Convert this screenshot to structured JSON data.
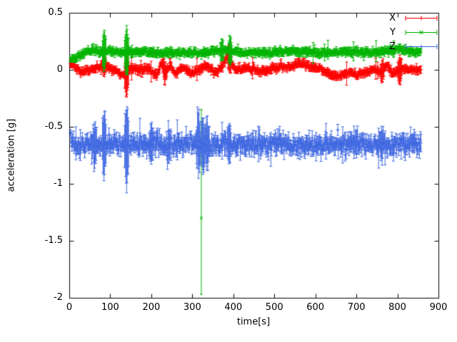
{
  "chart_data": {
    "type": "scatter",
    "style": "errorbars",
    "title": "",
    "xlabel": "time[s]",
    "ylabel": "acceleration [g]",
    "xlim": [
      0,
      900
    ],
    "ylim": [
      -2,
      0.5
    ],
    "xticks": [
      0,
      100,
      200,
      300,
      400,
      500,
      600,
      700,
      800,
      900
    ],
    "yticks": [
      0.5,
      0,
      -0.5,
      -1,
      -1.5,
      -2
    ],
    "grid": false,
    "legend_position": "top-right-inside",
    "x_start": 3,
    "x_end": 858,
    "x_step": 1.2,
    "seed": 42,
    "series": [
      {
        "name": "X",
        "color": "#ff0000",
        "marker": "plus",
        "noise_sd": 0.012,
        "err_base": 0.025,
        "err_spike_prob": 0.012,
        "err_spike": 0.09,
        "baseline": [
          [
            0,
            0.08
          ],
          [
            12,
            0.02
          ],
          [
            30,
            -0.02
          ],
          [
            55,
            0.0
          ],
          [
            75,
            0.03
          ],
          [
            95,
            0.03
          ],
          [
            115,
            -0.01
          ],
          [
            138,
            -0.06
          ],
          [
            150,
            0.02
          ],
          [
            170,
            0.0
          ],
          [
            195,
            0.01
          ],
          [
            213,
            -0.05
          ],
          [
            224,
            0.05
          ],
          [
            235,
            -0.04
          ],
          [
            246,
            0.05
          ],
          [
            258,
            -0.03
          ],
          [
            275,
            0.02
          ],
          [
            298,
            -0.03
          ],
          [
            318,
            0.01
          ],
          [
            338,
            0.03
          ],
          [
            355,
            -0.02
          ],
          [
            372,
            0.02
          ],
          [
            386,
            0.12
          ],
          [
            396,
            0.05
          ],
          [
            405,
            0.0
          ],
          [
            425,
            0.01
          ],
          [
            450,
            0.0
          ],
          [
            470,
            -0.02
          ],
          [
            498,
            0.02
          ],
          [
            515,
            0.03
          ],
          [
            540,
            0.02
          ],
          [
            558,
            0.06
          ],
          [
            572,
            0.05
          ],
          [
            590,
            0.02
          ],
          [
            612,
            0.01
          ],
          [
            632,
            -0.03
          ],
          [
            652,
            -0.06
          ],
          [
            668,
            -0.04
          ],
          [
            685,
            -0.02
          ],
          [
            702,
            -0.05
          ],
          [
            722,
            -0.02
          ],
          [
            742,
            0.0
          ],
          [
            762,
            -0.02
          ],
          [
            775,
            0.04
          ],
          [
            788,
            -0.03
          ],
          [
            802,
            0.0
          ],
          [
            822,
            0.01
          ],
          [
            843,
            0.0
          ],
          [
            858,
            -0.01
          ]
        ],
        "anomalies": [
          {
            "x": 85,
            "err": 0.09
          },
          {
            "x": 140,
            "err": 0.18
          },
          {
            "x": 232,
            "err": 0.1
          },
          {
            "x": 390,
            "err": 0.12
          },
          {
            "x": 763,
            "err": 0.1
          },
          {
            "x": 806,
            "err": 0.13
          }
        ],
        "outliers": []
      },
      {
        "name": "Y",
        "color": "#00b400",
        "marker": "cross",
        "noise_sd": 0.012,
        "err_base": 0.025,
        "err_spike_prob": 0.012,
        "err_spike": 0.08,
        "baseline": [
          [
            0,
            0.1
          ],
          [
            18,
            0.11
          ],
          [
            38,
            0.15
          ],
          [
            58,
            0.17
          ],
          [
            85,
            0.17
          ],
          [
            105,
            0.16
          ],
          [
            140,
            0.15
          ],
          [
            180,
            0.16
          ],
          [
            220,
            0.15
          ],
          [
            260,
            0.15
          ],
          [
            300,
            0.15
          ],
          [
            330,
            0.15
          ],
          [
            360,
            0.16
          ],
          [
            386,
            0.17
          ],
          [
            400,
            0.16
          ],
          [
            440,
            0.15
          ],
          [
            480,
            0.15
          ],
          [
            520,
            0.16
          ],
          [
            560,
            0.16
          ],
          [
            600,
            0.15
          ],
          [
            640,
            0.15
          ],
          [
            680,
            0.16
          ],
          [
            720,
            0.16
          ],
          [
            760,
            0.15
          ],
          [
            782,
            0.17
          ],
          [
            800,
            0.18
          ],
          [
            822,
            0.17
          ],
          [
            842,
            0.16
          ],
          [
            858,
            0.16
          ]
        ],
        "anomalies": [
          {
            "x": 85,
            "err": 0.18
          },
          {
            "x": 140,
            "err": 0.22
          },
          {
            "x": 372,
            "err": 0.1
          },
          {
            "x": 392,
            "err": 0.13
          }
        ],
        "outliers": [
          {
            "x": 322,
            "y": -1.3,
            "err_low": 0.67,
            "err_high": 0.95
          }
        ]
      },
      {
        "name": "Z",
        "color": "#4169e1",
        "marker": "plus",
        "noise_sd": 0.032,
        "err_base": 0.055,
        "err_spike_prob": 0.03,
        "err_spike": 0.12,
        "baseline": [
          [
            0,
            -0.63
          ],
          [
            20,
            -0.66
          ],
          [
            50,
            -0.65
          ],
          [
            80,
            -0.66
          ],
          [
            120,
            -0.65
          ],
          [
            160,
            -0.66
          ],
          [
            200,
            -0.65
          ],
          [
            240,
            -0.66
          ],
          [
            280,
            -0.65
          ],
          [
            320,
            -0.63
          ],
          [
            360,
            -0.66
          ],
          [
            400,
            -0.65
          ],
          [
            450,
            -0.66
          ],
          [
            500,
            -0.65
          ],
          [
            550,
            -0.66
          ],
          [
            600,
            -0.66
          ],
          [
            650,
            -0.65
          ],
          [
            700,
            -0.65
          ],
          [
            750,
            -0.66
          ],
          [
            800,
            -0.65
          ],
          [
            858,
            -0.65
          ]
        ],
        "anomalies": [
          {
            "x": 62,
            "err": 0.2
          },
          {
            "x": 85,
            "err": 0.3
          },
          {
            "x": 140,
            "err": 0.37
          },
          {
            "x": 200,
            "err": 0.18
          },
          {
            "x": 242,
            "err": 0.16
          },
          {
            "x": 315,
            "err": 0.28
          },
          {
            "x": 326,
            "err": 0.25
          },
          {
            "x": 336,
            "err": 0.22
          },
          {
            "x": 390,
            "err": 0.18
          },
          {
            "x": 700,
            "err": 0.12
          },
          {
            "x": 762,
            "err": 0.15
          }
        ],
        "outliers": []
      }
    ]
  }
}
